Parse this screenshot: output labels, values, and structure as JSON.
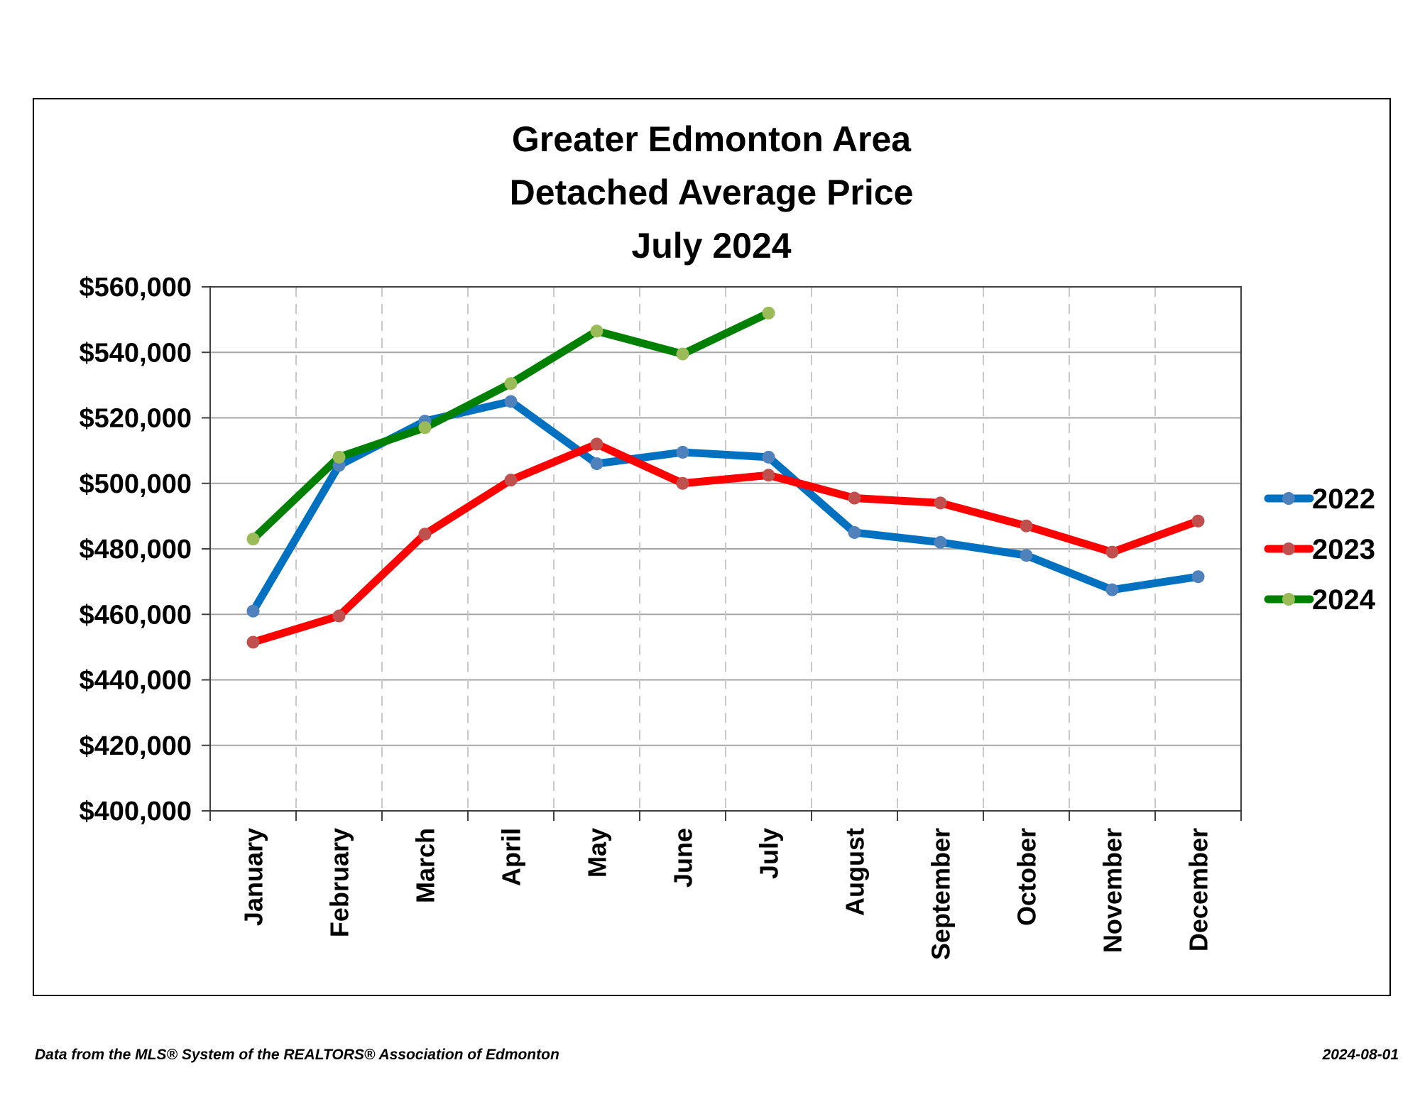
{
  "chart_data": {
    "type": "line",
    "title_lines": [
      "Greater Edmonton Area",
      "Detached Average Price",
      "July 2024"
    ],
    "xlabel": "",
    "ylabel": "",
    "categories": [
      "January",
      "February",
      "March",
      "April",
      "May",
      "June",
      "July",
      "August",
      "September",
      "October",
      "November",
      "December"
    ],
    "ylim": [
      400000,
      560000
    ],
    "yticks": [
      400000,
      420000,
      440000,
      460000,
      480000,
      500000,
      520000,
      540000,
      560000
    ],
    "ytick_labels": [
      "$400,000",
      "$420,000",
      "$440,000",
      "$460,000",
      "$480,000",
      "$500,000",
      "$520,000",
      "$540,000",
      "$560,000"
    ],
    "grid": {
      "horizontal": "solid",
      "vertical": "dashed"
    },
    "legend_position": "right",
    "series": [
      {
        "name": "2022",
        "line_color": "#0070C0",
        "marker_color": "#4F81BD",
        "values": [
          461000,
          505500,
          519000,
          525000,
          506000,
          509500,
          508000,
          485000,
          482000,
          478000,
          467500,
          471500
        ]
      },
      {
        "name": "2023",
        "line_color": "#FF0000",
        "marker_color": "#C0504D",
        "values": [
          451500,
          459500,
          484500,
          501000,
          512000,
          500000,
          502500,
          495500,
          494000,
          487000,
          479000,
          488500
        ]
      },
      {
        "name": "2024",
        "line_color": "#008000",
        "marker_color": "#9BBB59",
        "values": [
          483000,
          508000,
          517000,
          530500,
          546500,
          539500,
          552000,
          null,
          null,
          null,
          null,
          null
        ]
      }
    ]
  },
  "footer": {
    "source": "Data from the MLS® System of the REALTORS® Association of Edmonton",
    "date": "2024-08-01"
  }
}
